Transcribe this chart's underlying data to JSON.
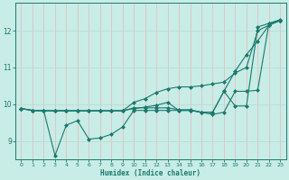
{
  "xlabel": "Humidex (Indice chaleur)",
  "bg_color": "#c8ece6",
  "line_color": "#1a7a6e",
  "grid_color_v": "#e8b8b8",
  "grid_color_h": "#b8d8d4",
  "xlim": [
    -0.5,
    23.5
  ],
  "ylim": [
    8.5,
    12.75
  ],
  "yticks": [
    9,
    10,
    11,
    12
  ],
  "xticks": [
    0,
    1,
    2,
    3,
    4,
    5,
    6,
    7,
    8,
    9,
    10,
    11,
    12,
    13,
    14,
    15,
    16,
    17,
    18,
    19,
    20,
    21,
    22,
    23
  ],
  "line1_x": [
    0,
    1,
    2,
    3,
    4,
    5,
    6,
    7,
    8,
    9,
    10,
    11,
    12,
    13,
    14,
    15,
    16,
    17,
    18,
    19,
    20,
    21,
    22,
    23
  ],
  "line1_y": [
    9.88,
    9.83,
    9.82,
    8.6,
    9.43,
    9.55,
    9.05,
    9.08,
    9.18,
    9.38,
    9.83,
    9.83,
    9.83,
    9.83,
    9.83,
    9.83,
    9.78,
    9.78,
    10.35,
    9.95,
    9.95,
    12.1,
    12.2,
    12.3
  ],
  "line2_x": [
    0,
    1,
    2,
    3,
    4,
    5,
    6,
    7,
    8,
    9,
    10,
    11,
    12,
    13,
    14,
    15,
    16,
    17,
    18,
    19,
    20,
    21,
    22,
    23
  ],
  "line2_y": [
    9.88,
    9.83,
    9.82,
    9.82,
    9.82,
    9.82,
    9.82,
    9.82,
    9.82,
    9.82,
    9.88,
    9.92,
    9.97,
    10.05,
    9.83,
    9.83,
    9.78,
    9.72,
    9.78,
    10.35,
    10.35,
    10.38,
    12.2,
    12.28
  ],
  "line3_x": [
    0,
    1,
    2,
    3,
    4,
    5,
    6,
    7,
    8,
    9,
    10,
    11,
    12,
    13,
    14,
    15,
    16,
    17,
    18,
    19,
    20,
    21,
    22,
    23
  ],
  "line3_y": [
    9.88,
    9.83,
    9.82,
    9.82,
    9.82,
    9.82,
    9.82,
    9.82,
    9.82,
    9.82,
    10.05,
    10.15,
    10.32,
    10.42,
    10.47,
    10.47,
    10.5,
    10.55,
    10.6,
    10.85,
    11.0,
    12.0,
    12.15,
    12.28
  ],
  "line4_x": [
    0,
    1,
    2,
    3,
    4,
    5,
    6,
    7,
    8,
    9,
    10,
    11,
    12,
    13,
    14,
    15,
    16,
    17,
    18,
    19,
    20,
    21,
    22,
    23
  ],
  "line4_y": [
    9.88,
    9.83,
    9.82,
    9.82,
    9.82,
    9.82,
    9.82,
    9.82,
    9.82,
    9.82,
    9.9,
    9.9,
    9.9,
    9.9,
    9.85,
    9.85,
    9.78,
    9.78,
    10.35,
    10.9,
    11.35,
    11.72,
    12.15,
    12.28
  ]
}
